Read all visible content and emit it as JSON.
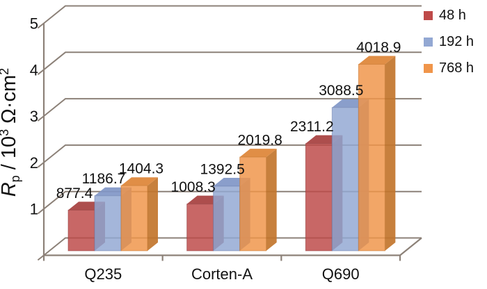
{
  "chart_data": {
    "type": "bar",
    "variant": "3d-clustered-column",
    "title": "",
    "categories": [
      "Q235",
      "Corten-A",
      "Q690"
    ],
    "series": [
      {
        "name": "48 h",
        "values": [
          877.4,
          1008.3,
          2311.2
        ],
        "color": "#BE4A49",
        "color_top": "#A63F3E",
        "color_side": "#8D3736"
      },
      {
        "name": "192 h",
        "values": [
          1186.7,
          1392.5,
          3088.5
        ],
        "color": "#93A8D3",
        "color_top": "#8096C7",
        "color_side": "#6B7DAD"
      },
      {
        "name": "768 h",
        "values": [
          1404.3,
          2019.8,
          4018.9
        ],
        "color": "#F0954A",
        "color_top": "#DD8436",
        "color_side": "#C2752C"
      }
    ],
    "data_labels": [
      [
        "877.4",
        "1186.7",
        "1404.3"
      ],
      [
        "1008.3",
        "1392.5",
        "2019.8"
      ],
      [
        "2311.2",
        "3088.5",
        "4018.9"
      ]
    ],
    "ylabel": "Rp / 10³ Ω·cm²",
    "ylabel_parts": {
      "symbol": "R",
      "symbol_sub": "p",
      "divider": " / 10",
      "exponent": "3",
      "unit": " Ω·cm",
      "unit_exponent": "2"
    },
    "xlabel": "",
    "yticks": [
      1,
      2,
      3,
      4,
      5
    ],
    "ylim": [
      0,
      5
    ],
    "y_axis_units": "10³ Ω·cm²",
    "grid": true,
    "legend_position": "top-right",
    "axis_color": "#8C8178",
    "text_color": "#111111",
    "background": "#FFFFFF"
  }
}
